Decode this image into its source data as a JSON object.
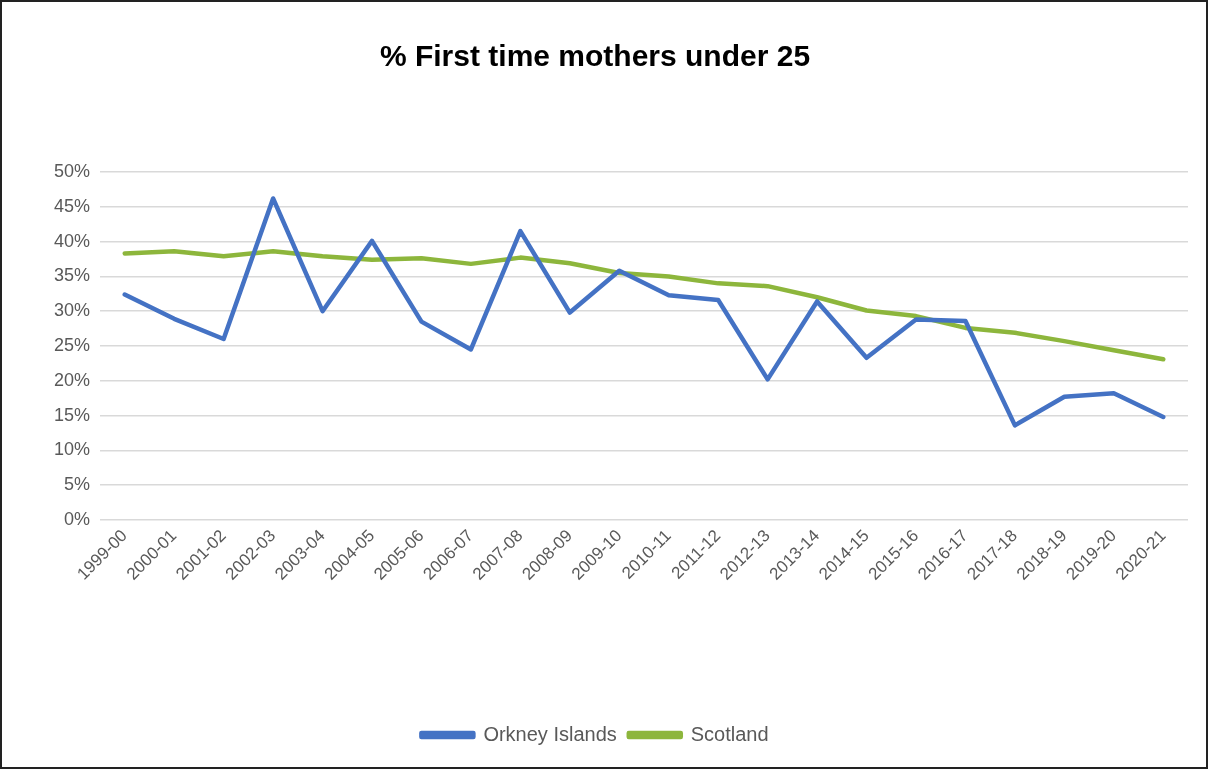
{
  "chart_data": {
    "type": "line",
    "title": "% First time mothers under 25",
    "categories": [
      "1999-00",
      "2000-01",
      "2001-02",
      "2002-03",
      "2003-04",
      "2004-05",
      "2005-06",
      "2006-07",
      "2007-08",
      "2008-09",
      "2009-10",
      "2010-11",
      "2011-12",
      "2012-13",
      "2013-14",
      "2014-15",
      "2015-16",
      "2016-17",
      "2017-18",
      "2018-19",
      "2019-20",
      "2020-21"
    ],
    "series": [
      {
        "name": "Orkney Islands",
        "color": "#4472c4",
        "values": [
          32.4,
          28.9,
          26.0,
          46.2,
          30.0,
          40.1,
          28.5,
          24.5,
          41.5,
          29.8,
          35.8,
          32.3,
          31.6,
          20.2,
          31.4,
          23.3,
          28.8,
          28.6,
          13.6,
          17.7,
          18.2,
          14.8
        ]
      },
      {
        "name": "Scotland",
        "color": "#8db63c",
        "values": [
          38.3,
          38.6,
          37.9,
          38.6,
          37.9,
          37.4,
          37.6,
          36.8,
          37.7,
          36.9,
          35.5,
          35.0,
          34.0,
          33.6,
          32.0,
          30.1,
          29.3,
          27.6,
          26.9,
          25.7,
          24.4,
          23.1
        ]
      }
    ],
    "ylim": [
      0,
      50
    ],
    "yticks": [
      {
        "value": 0,
        "label": "0%"
      },
      {
        "value": 5,
        "label": "5%"
      },
      {
        "value": 10,
        "label": "10%"
      },
      {
        "value": 15,
        "label": "15%"
      },
      {
        "value": 20,
        "label": "20%"
      },
      {
        "value": 25,
        "label": "25%"
      },
      {
        "value": 30,
        "label": "30%"
      },
      {
        "value": 35,
        "label": "35%"
      },
      {
        "value": 40,
        "label": "40%"
      },
      {
        "value": 45,
        "label": "45%"
      },
      {
        "value": 50,
        "label": "50%"
      }
    ],
    "grid": "y",
    "legend": "bottom",
    "line_style": "solid"
  }
}
